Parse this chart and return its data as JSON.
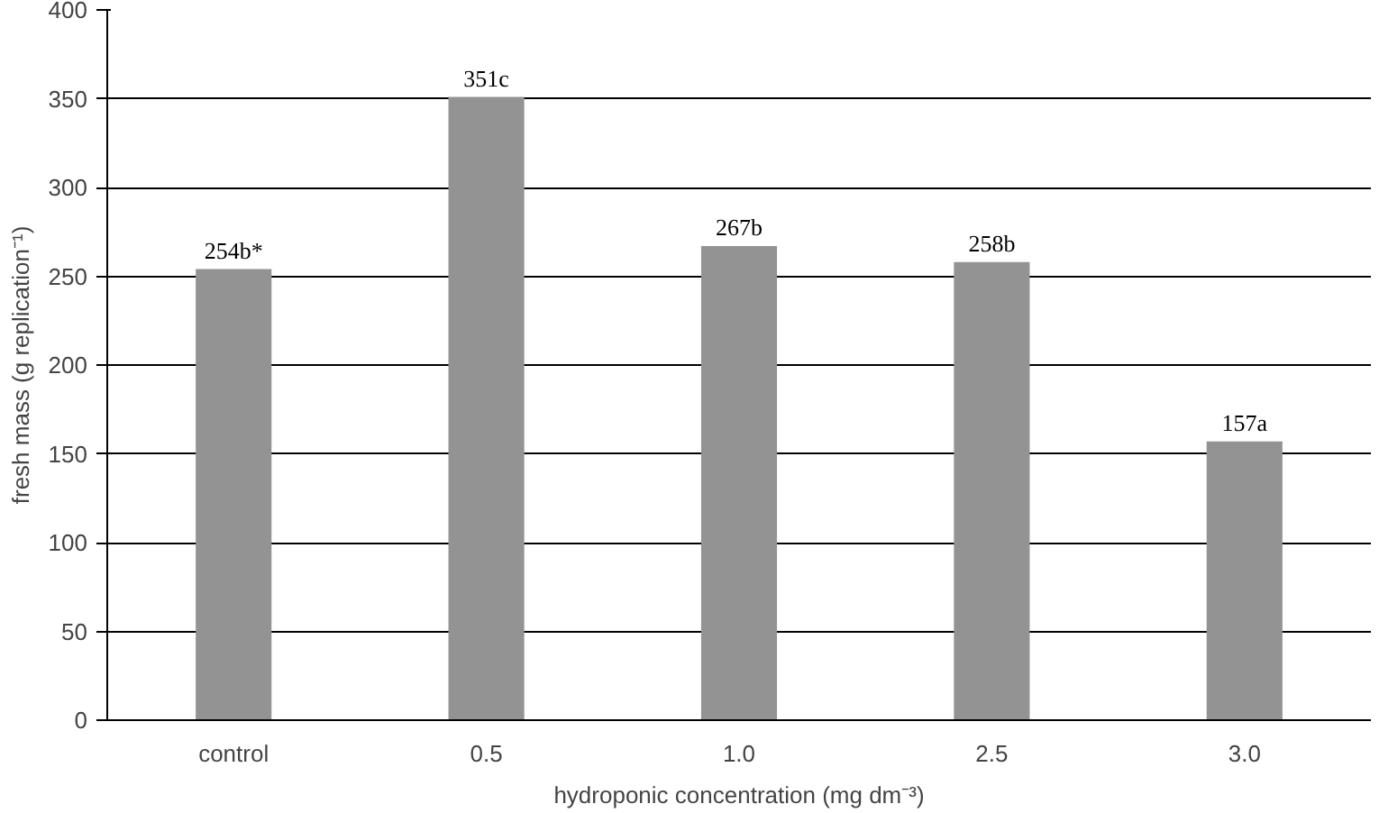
{
  "chart_data": {
    "type": "bar",
    "xlabel": "hydroponic concentration (mg dm⁻³)",
    "ylabel": "fresh mass (g replication⁻¹)",
    "categories": [
      "control",
      "0.5",
      "1.0",
      "2.5",
      "3.0"
    ],
    "values": [
      254,
      351,
      267,
      258,
      157
    ],
    "value_labels": [
      "254b*",
      "351c",
      "267b",
      "258b",
      "157a"
    ],
    "color": "#939393",
    "ylim": [
      0,
      400
    ],
    "yticks": [
      0,
      50,
      100,
      150,
      200,
      250,
      300,
      350,
      400
    ],
    "grid": "y"
  }
}
